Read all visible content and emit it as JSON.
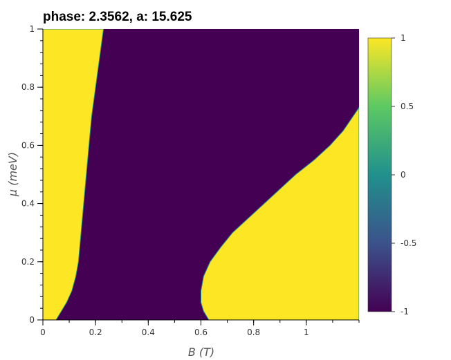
{
  "chart_data": {
    "type": "heatmap",
    "title": "phase: 2.3562, a: 15.625",
    "xlabel": "B (T)",
    "ylabel": "μ (meV)",
    "xlim": [
      0,
      1.2
    ],
    "ylim": [
      0,
      1
    ],
    "x_ticks": [
      0,
      0.2,
      0.4,
      0.6,
      0.8,
      1
    ],
    "x_tick_labels": [
      "0",
      "0.2",
      "0.4",
      "0.6",
      "0.8",
      "1"
    ],
    "y_ticks": [
      0,
      0.2,
      0.4,
      0.6,
      0.8,
      1
    ],
    "y_tick_labels": [
      "0",
      "0.2",
      "0.4",
      "0.6",
      "0.8",
      "1"
    ],
    "colorbar": {
      "range": [
        -1,
        1
      ],
      "ticks": [
        1,
        0.5,
        0,
        -0.5,
        -1
      ],
      "tick_labels": [
        "1",
        "0.5",
        "0",
        "-0.5",
        "-1"
      ],
      "colormap": "viridis",
      "colors": [
        "#440154",
        "#3b528b",
        "#21908d",
        "#5dc963",
        "#fde725"
      ]
    },
    "low_color": "#440154",
    "high_color": "#fde725",
    "regions": [
      {
        "name": "left boundary (value 1 for B below this curve)",
        "value": 1,
        "boundary": [
          {
            "y": 0,
            "x": 0.05
          },
          {
            "y": 0.03,
            "x": 0.07
          },
          {
            "y": 0.06,
            "x": 0.09
          },
          {
            "y": 0.1,
            "x": 0.11
          },
          {
            "y": 0.15,
            "x": 0.125
          },
          {
            "y": 0.2,
            "x": 0.135
          },
          {
            "y": 0.25,
            "x": 0.14
          },
          {
            "y": 0.3,
            "x": 0.145
          },
          {
            "y": 0.4,
            "x": 0.155
          },
          {
            "y": 0.5,
            "x": 0.165
          },
          {
            "y": 0.6,
            "x": 0.175
          },
          {
            "y": 0.7,
            "x": 0.185
          },
          {
            "y": 0.8,
            "x": 0.2
          },
          {
            "y": 0.9,
            "x": 0.215
          },
          {
            "y": 1,
            "x": 0.23
          }
        ]
      },
      {
        "name": "right boundary (value 1 for B above this curve)",
        "value": 1,
        "boundary": [
          {
            "y": 0,
            "x": 0.63
          },
          {
            "y": 0.03,
            "x": 0.61
          },
          {
            "y": 0.06,
            "x": 0.6
          },
          {
            "y": 0.1,
            "x": 0.6
          },
          {
            "y": 0.15,
            "x": 0.61
          },
          {
            "y": 0.2,
            "x": 0.635
          },
          {
            "y": 0.25,
            "x": 0.675
          },
          {
            "y": 0.3,
            "x": 0.72
          },
          {
            "y": 0.35,
            "x": 0.78
          },
          {
            "y": 0.4,
            "x": 0.84
          },
          {
            "y": 0.45,
            "x": 0.9
          },
          {
            "y": 0.5,
            "x": 0.96
          },
          {
            "y": 0.55,
            "x": 1.03
          },
          {
            "y": 0.6,
            "x": 1.09
          },
          {
            "y": 0.65,
            "x": 1.14
          },
          {
            "y": 0.73,
            "x": 1.2
          }
        ]
      }
    ]
  }
}
